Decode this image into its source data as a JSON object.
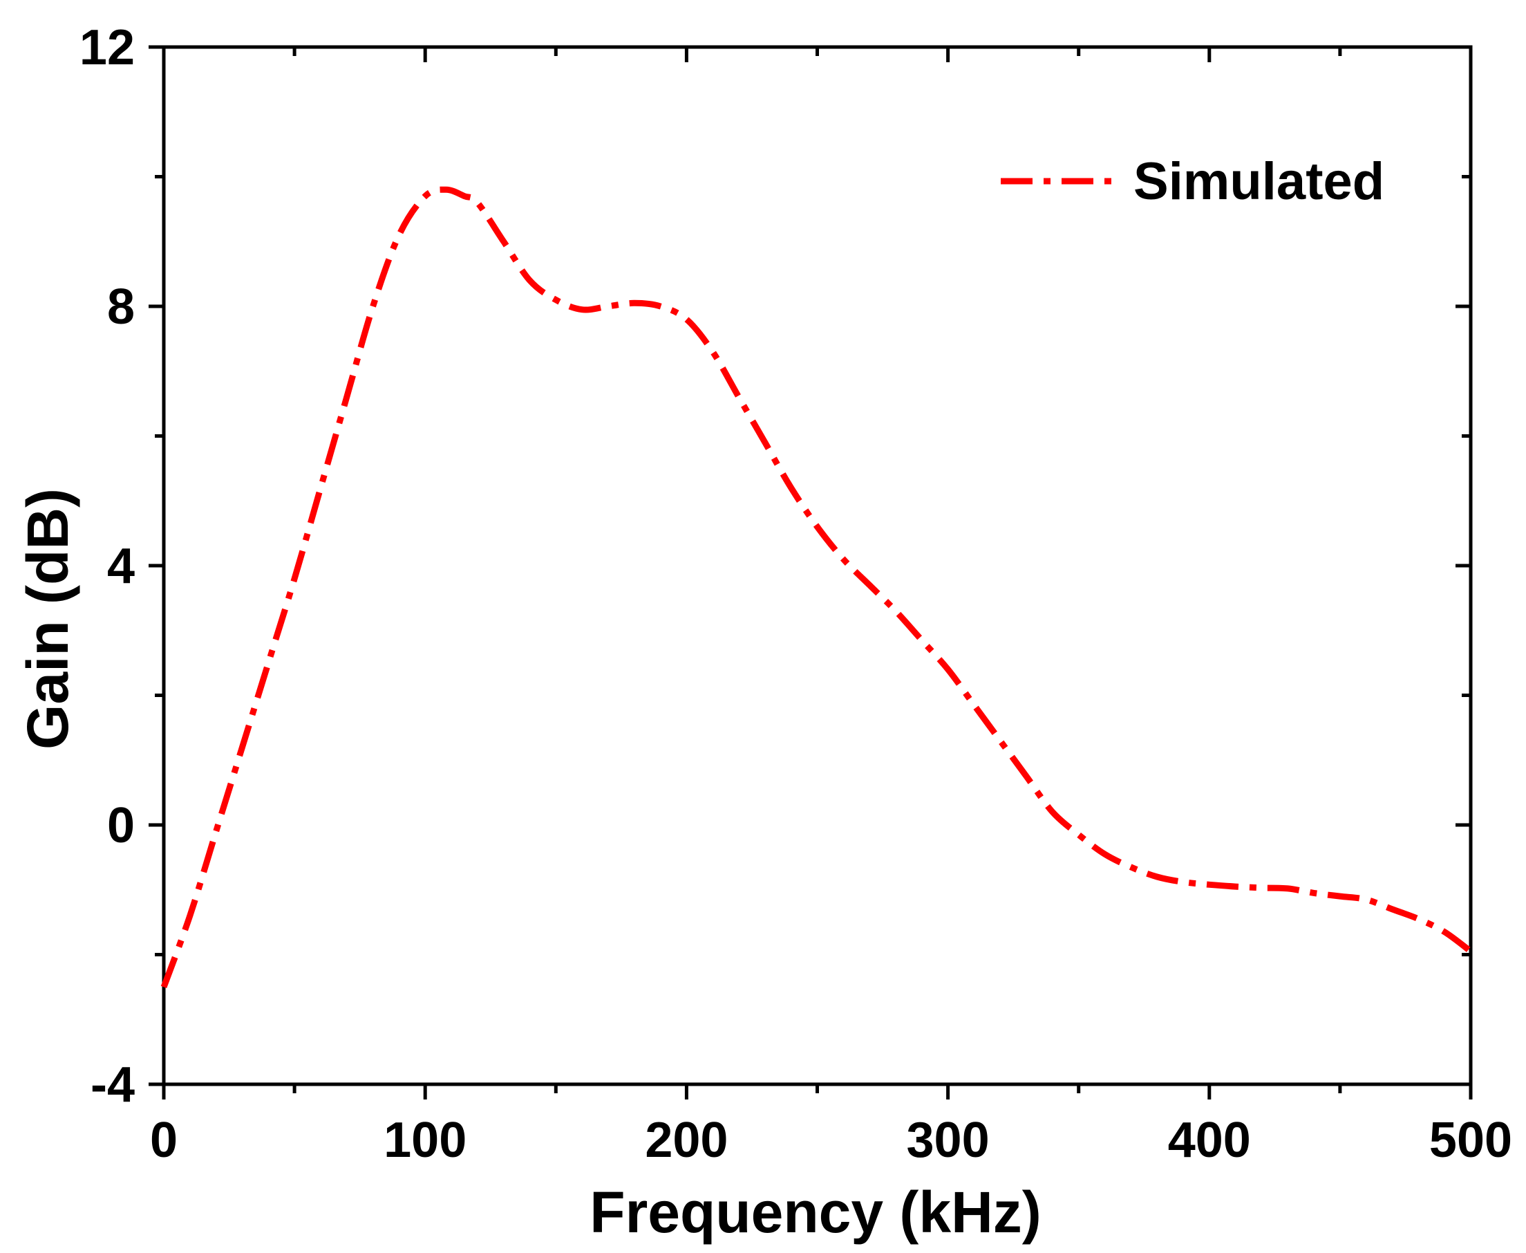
{
  "chart_data": {
    "type": "line",
    "title": "",
    "xlabel": "Frequency (kHz)",
    "ylabel": "Gain (dB)",
    "xlim": [
      0,
      500
    ],
    "ylim": [
      -4,
      12
    ],
    "x_ticks": [
      0,
      100,
      200,
      300,
      400,
      500
    ],
    "x_tick_labels": [
      "0",
      "100",
      "200",
      "300",
      "400",
      "500"
    ],
    "y_ticks": [
      -4,
      0,
      4,
      8,
      12
    ],
    "y_tick_labels": [
      "-4",
      "0",
      "4",
      "8",
      "12"
    ],
    "grid": false,
    "legend_position": "top-right",
    "series": [
      {
        "name": "Simulated",
        "color": "#ff0000",
        "line_style": "dash-dot",
        "x": [
          0,
          10,
          20,
          30,
          40,
          50,
          60,
          70,
          80,
          90,
          100,
          108,
          115,
          120,
          130,
          140,
          150,
          160,
          170,
          180,
          190,
          200,
          210,
          220,
          230,
          240,
          250,
          260,
          270,
          280,
          290,
          300,
          310,
          320,
          330,
          340,
          350,
          360,
          370,
          380,
          390,
          400,
          410,
          420,
          430,
          440,
          450,
          460,
          470,
          480,
          490,
          500
        ],
        "values": [
          -2.5,
          -1.4,
          -0.1,
          1.2,
          2.5,
          3.8,
          5.2,
          6.6,
          8.0,
          9.1,
          9.7,
          9.8,
          9.7,
          9.6,
          9.0,
          8.4,
          8.1,
          7.95,
          8.0,
          8.05,
          8.0,
          7.8,
          7.3,
          6.6,
          5.9,
          5.2,
          4.6,
          4.1,
          3.7,
          3.3,
          2.85,
          2.4,
          1.85,
          1.3,
          0.75,
          0.2,
          -0.15,
          -0.45,
          -0.65,
          -0.8,
          -0.88,
          -0.92,
          -0.95,
          -0.97,
          -0.98,
          -1.05,
          -1.1,
          -1.15,
          -1.3,
          -1.45,
          -1.65,
          -1.95
        ]
      }
    ]
  }
}
